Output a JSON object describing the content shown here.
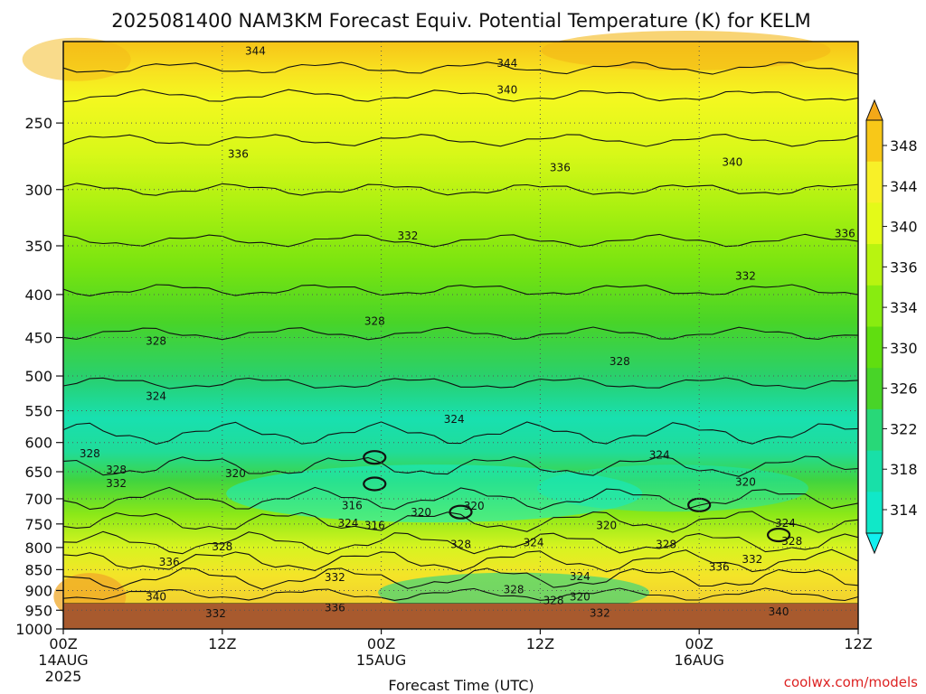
{
  "chart_data": {
    "type": "heatmap",
    "title": "2025081400 NAM3KM Forecast Equiv. Potential Temperature (K) for KELM",
    "xlabel": "Forecast Time (UTC)",
    "ylabel": "",
    "x_ticks": [
      {
        "label": "00Z",
        "sub": "14AUG",
        "sub2": "2025",
        "hour": 0
      },
      {
        "label": "12Z",
        "sub": "",
        "sub2": "",
        "hour": 12
      },
      {
        "label": "00Z",
        "sub": "15AUG",
        "sub2": "",
        "hour": 24
      },
      {
        "label": "12Z",
        "sub": "",
        "sub2": "",
        "hour": 36
      },
      {
        "label": "00Z",
        "sub": "16AUG",
        "sub2": "",
        "hour": 48
      },
      {
        "label": "12Z",
        "sub": "",
        "sub2": "",
        "hour": 60
      }
    ],
    "xlim": [
      0,
      60
    ],
    "y_scale": "log",
    "y_ticks": [
      250,
      300,
      350,
      400,
      450,
      500,
      550,
      600,
      650,
      700,
      750,
      800,
      850,
      900,
      950,
      1000
    ],
    "ylim": [
      200,
      1000
    ],
    "ground_level_hPa": 970,
    "colorbar": {
      "ticks": [
        348,
        344,
        340,
        336,
        334,
        330,
        326,
        322,
        318,
        314
      ],
      "range": [
        314,
        348
      ],
      "colors": [
        "#10e8c8",
        "#18e0a8",
        "#28d878",
        "#48d428",
        "#60de10",
        "#88ec10",
        "#b8f410",
        "#e4fa18",
        "#f8f028",
        "#f8c818"
      ],
      "extend": "both"
    },
    "contour_labels": [
      {
        "text": "344",
        "hour": 14.5,
        "hPa": 205
      },
      {
        "text": "344",
        "hour": 33.5,
        "hPa": 212
      },
      {
        "text": "340",
        "hour": 33.5,
        "hPa": 228
      },
      {
        "text": "336",
        "hour": 13.2,
        "hPa": 272
      },
      {
        "text": "340",
        "hour": 50.5,
        "hPa": 278
      },
      {
        "text": "336",
        "hour": 37.5,
        "hPa": 282
      },
      {
        "text": "336",
        "hour": 59,
        "hPa": 338
      },
      {
        "text": "332",
        "hour": 26,
        "hPa": 340
      },
      {
        "text": "332",
        "hour": 51.5,
        "hPa": 380
      },
      {
        "text": "328",
        "hour": 23.5,
        "hPa": 430
      },
      {
        "text": "328",
        "hour": 7,
        "hPa": 454
      },
      {
        "text": "328",
        "hour": 42,
        "hPa": 480
      },
      {
        "text": "324",
        "hour": 7,
        "hPa": 528
      },
      {
        "text": "324",
        "hour": 29.5,
        "hPa": 562
      },
      {
        "text": "324",
        "hour": 45,
        "hPa": 620
      },
      {
        "text": "328",
        "hour": 2,
        "hPa": 618
      },
      {
        "text": "328",
        "hour": 4,
        "hPa": 646
      },
      {
        "text": "332",
        "hour": 4,
        "hPa": 670
      },
      {
        "text": "320",
        "hour": 13,
        "hPa": 652
      },
      {
        "text": "320",
        "hour": 51.5,
        "hPa": 668
      },
      {
        "text": "316",
        "hour": 21.8,
        "hPa": 712
      },
      {
        "text": "320",
        "hour": 31,
        "hPa": 713
      },
      {
        "text": "320",
        "hour": 27,
        "hPa": 726
      },
      {
        "text": "324",
        "hour": 21.5,
        "hPa": 748
      },
      {
        "text": "316",
        "hour": 23.5,
        "hPa": 752
      },
      {
        "text": "320",
        "hour": 41,
        "hPa": 752
      },
      {
        "text": "324",
        "hour": 54.5,
        "hPa": 748
      },
      {
        "text": "328",
        "hour": 12,
        "hPa": 797
      },
      {
        "text": "328",
        "hour": 30,
        "hPa": 792
      },
      {
        "text": "324",
        "hour": 35.5,
        "hPa": 788
      },
      {
        "text": "328",
        "hour": 45.5,
        "hPa": 792
      },
      {
        "text": "328",
        "hour": 55,
        "hPa": 786
      },
      {
        "text": "332",
        "hour": 52,
        "hPa": 825
      },
      {
        "text": "336",
        "hour": 8,
        "hPa": 832
      },
      {
        "text": "336",
        "hour": 49.5,
        "hPa": 843
      },
      {
        "text": "332",
        "hour": 20.5,
        "hPa": 867
      },
      {
        "text": "324",
        "hour": 39,
        "hPa": 865
      },
      {
        "text": "328",
        "hour": 34,
        "hPa": 897
      },
      {
        "text": "340",
        "hour": 7,
        "hPa": 915
      },
      {
        "text": "320",
        "hour": 39,
        "hPa": 915
      },
      {
        "text": "328",
        "hour": 37,
        "hPa": 924
      },
      {
        "text": "336",
        "hour": 20.5,
        "hPa": 942
      },
      {
        "text": "332",
        "hour": 40.5,
        "hPa": 957
      },
      {
        "text": "332",
        "hour": 11.5,
        "hPa": 958
      },
      {
        "text": "340",
        "hour": 54,
        "hPa": 953
      }
    ],
    "credit": "coolwx.com/models"
  }
}
